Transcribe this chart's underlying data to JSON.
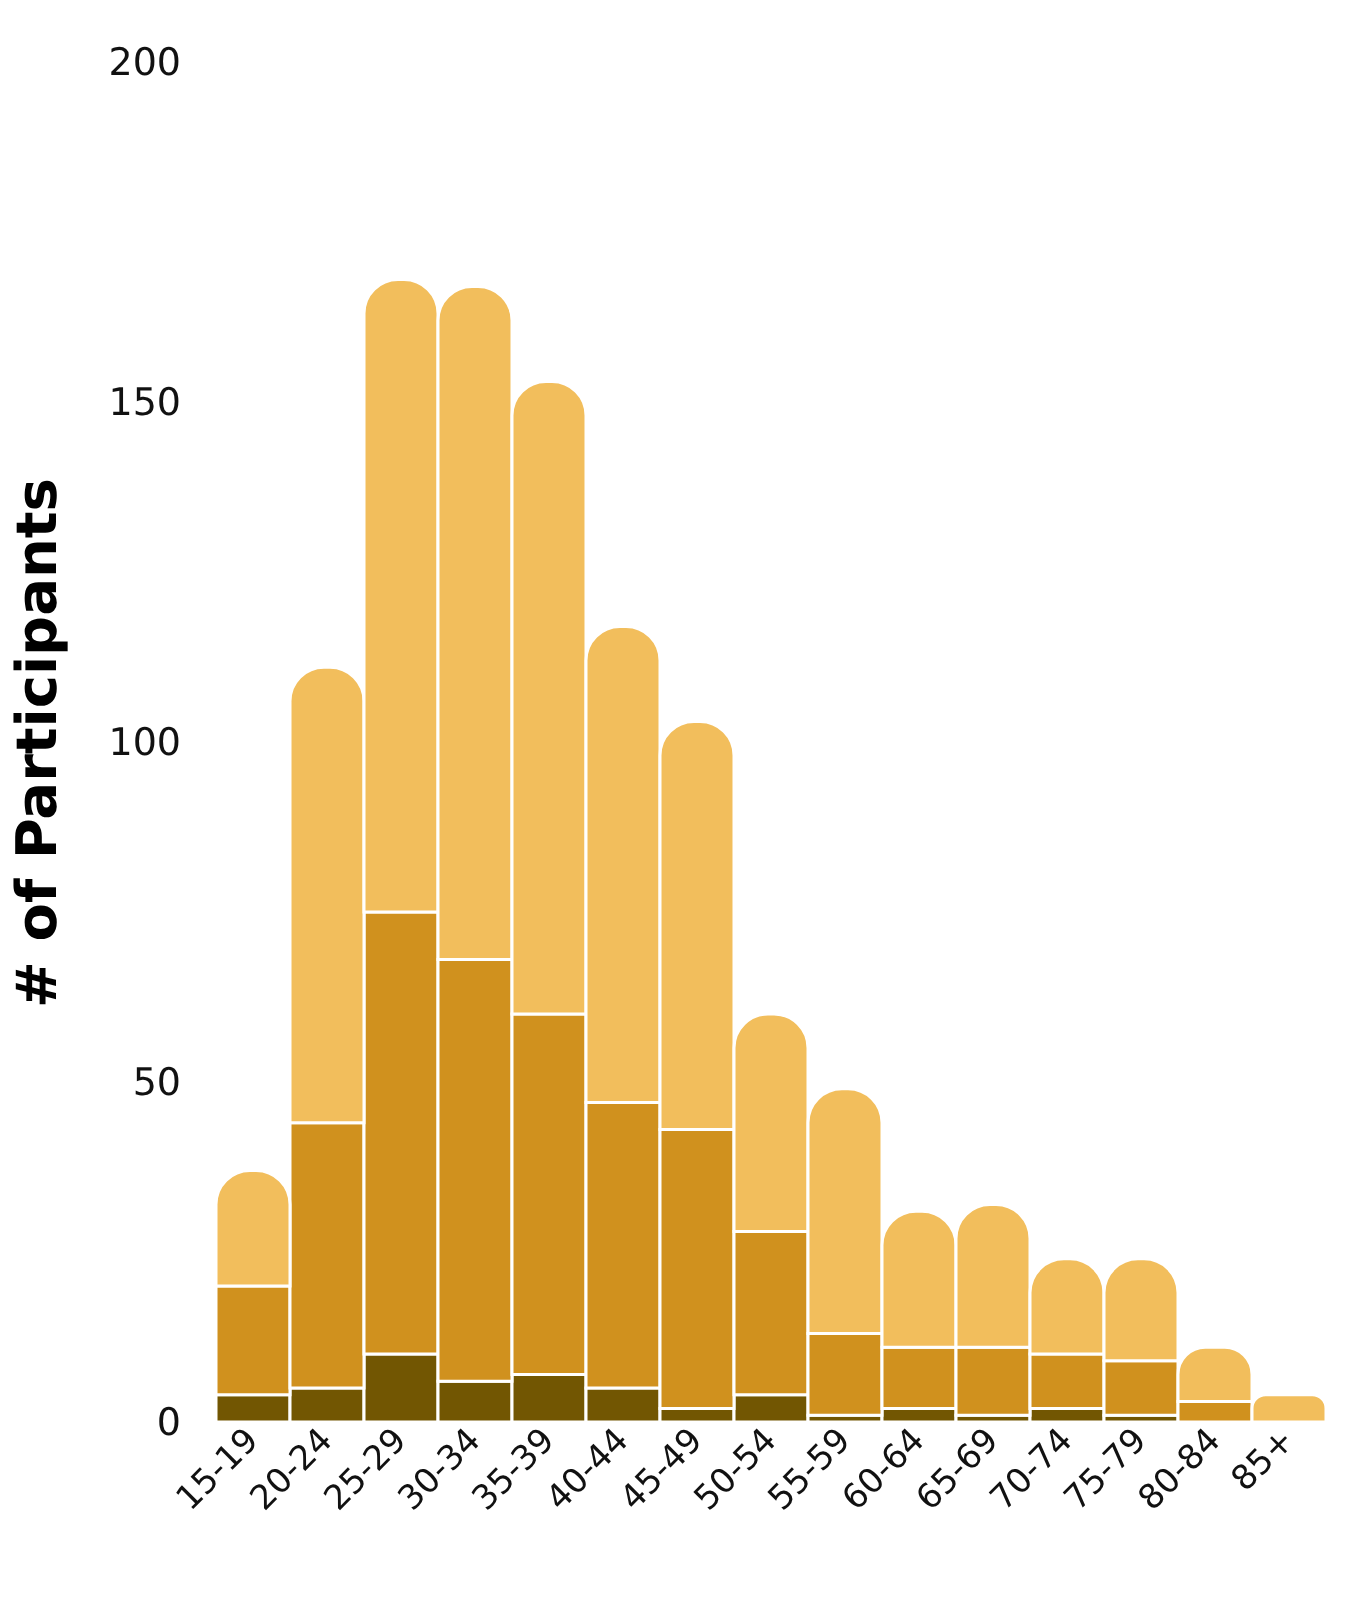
{
  "chart_data": {
    "type": "bar",
    "stacked": true,
    "ylabel": "# of Participants",
    "categories": [
      "15-19",
      "20-24",
      "25-29",
      "30-34",
      "35-39",
      "40-44",
      "45-49",
      "50-54",
      "55-59",
      "60-64",
      "65-69",
      "70-74",
      "75-79",
      "80-84",
      "85+"
    ],
    "series": [
      {
        "color": "#725602",
        "values": [
          4,
          5,
          10,
          6,
          7,
          5,
          2,
          4,
          1,
          2,
          1,
          2,
          1,
          0,
          0
        ]
      },
      {
        "color": "#d0911e",
        "values": [
          16,
          39,
          65,
          62,
          53,
          42,
          41,
          24,
          12,
          9,
          10,
          8,
          8,
          3,
          0
        ]
      },
      {
        "color": "#f2be5c",
        "values": [
          17,
          67,
          93,
          99,
          93,
          70,
          60,
          32,
          36,
          20,
          21,
          14,
          15,
          8,
          4
        ]
      }
    ],
    "ylim": [
      0,
      200
    ],
    "yticks": [
      0,
      50,
      100,
      150,
      200
    ],
    "grid": false,
    "legend": false
  }
}
